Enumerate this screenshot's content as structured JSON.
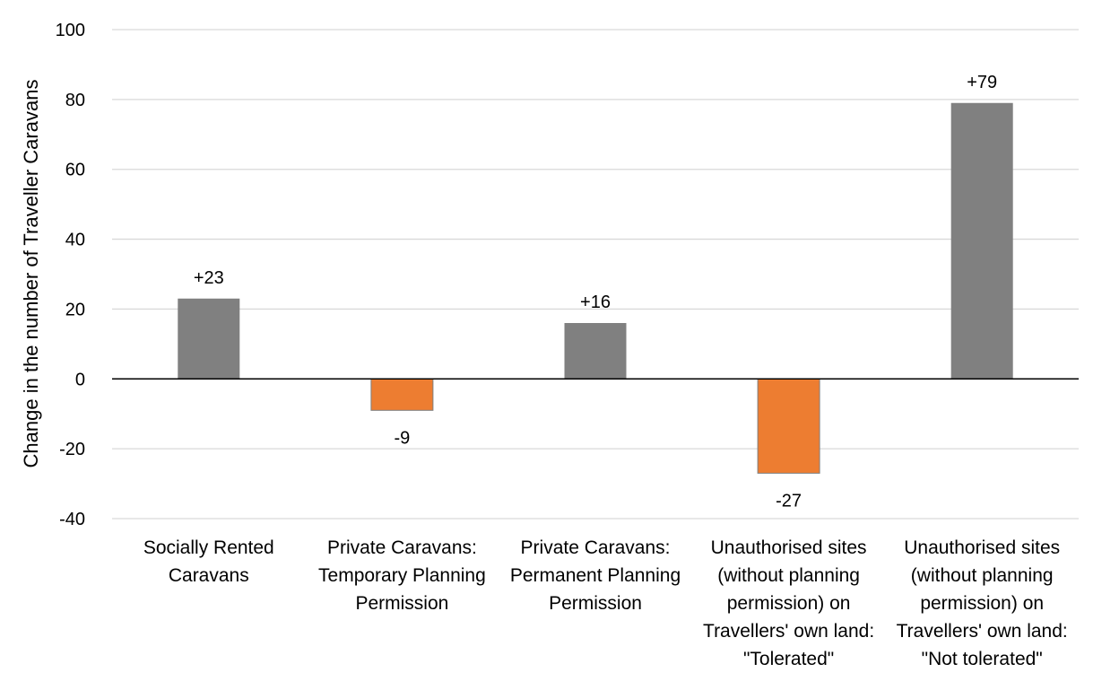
{
  "chart_data": {
    "type": "bar",
    "categories": [
      [
        "Socially Rented",
        "Caravans"
      ],
      [
        "Private Caravans:",
        "Temporary Planning",
        "Permission"
      ],
      [
        "Private Caravans:",
        "Permanent Planning",
        "Permission"
      ],
      [
        "Unauthorised sites",
        "(without planning",
        "permission) on",
        "Travellers' own land:",
        "\"Tolerated\""
      ],
      [
        "Unauthorised sites",
        "(without planning",
        "permission) on",
        "Travellers' own land:",
        "\"Not tolerated\""
      ]
    ],
    "values": [
      23,
      -9,
      16,
      -27,
      79
    ],
    "data_labels": [
      "+23",
      "-9",
      "+16",
      "-27",
      "+79"
    ],
    "ylabel": "Change in the number of Traveller Caravans",
    "xlabel": "",
    "title": "",
    "ylim": [
      -40,
      100
    ],
    "yticks": [
      -40,
      -20,
      0,
      20,
      40,
      60,
      80,
      100
    ],
    "grid": true,
    "legend": "none",
    "colors": {
      "positive": "#808080",
      "negative": "#ED7D31",
      "grid": "#d9d9d9",
      "zero_line": "#000000"
    }
  }
}
